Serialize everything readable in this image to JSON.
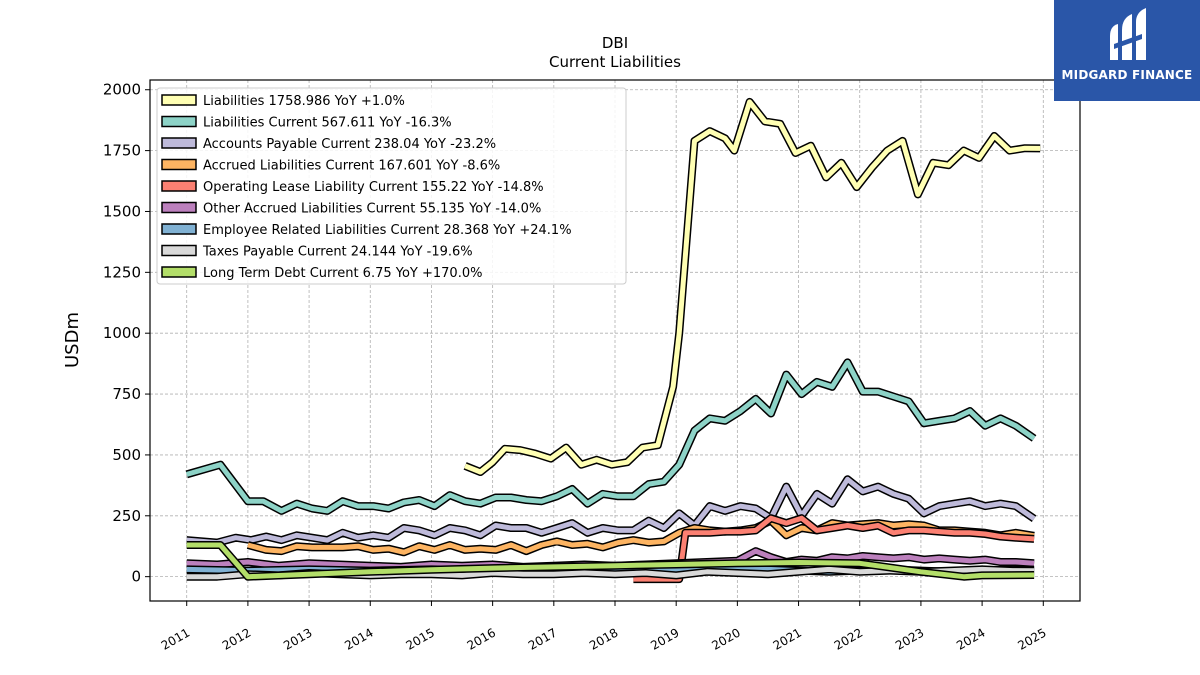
{
  "brand": {
    "name": "MIDGARD FINANCE",
    "color": "#2a56a8"
  },
  "chart_data": {
    "type": "line",
    "title": "DBI",
    "subtitle": "Current  Liabilities",
    "ylabel": "USDm",
    "xlabel": "",
    "ylim": [
      -100,
      2040
    ],
    "xlim": [
      2010.4,
      2025.6
    ],
    "yticks": [
      0,
      250,
      500,
      750,
      1000,
      1250,
      1500,
      1750,
      2000
    ],
    "xticks": [
      "2011",
      "2012",
      "2013",
      "2014",
      "2015",
      "2016",
      "2017",
      "2018",
      "2019",
      "2020",
      "2021",
      "2022",
      "2023",
      "2024",
      "2025"
    ],
    "grid": true,
    "legend_position": "top-left",
    "series": [
      {
        "name": "Liabilities  1758.986 YoY +1.0%",
        "color": "#ffffb3",
        "x": [
          2015.55,
          2015.8,
          2016.0,
          2016.2,
          2016.45,
          2016.7,
          2016.95,
          2017.2,
          2017.45,
          2017.7,
          2017.95,
          2018.2,
          2018.45,
          2018.7,
          2018.95,
          2019.05,
          2019.3,
          2019.55,
          2019.8,
          2019.95,
          2020.2,
          2020.45,
          2020.7,
          2020.95,
          2021.2,
          2021.45,
          2021.7,
          2021.95,
          2022.2,
          2022.45,
          2022.7,
          2022.95,
          2023.2,
          2023.45,
          2023.7,
          2023.95,
          2024.2,
          2024.45,
          2024.7,
          2024.95
        ],
        "y": [
          455,
          430,
          470,
          525,
          520,
          505,
          485,
          530,
          460,
          480,
          460,
          470,
          530,
          540,
          780,
          1000,
          1790,
          1830,
          1800,
          1750,
          1950,
          1870,
          1860,
          1740,
          1770,
          1640,
          1700,
          1600,
          1680,
          1750,
          1790,
          1570,
          1700,
          1690,
          1750,
          1720,
          1810,
          1750,
          1760,
          1759
        ]
      },
      {
        "name": "Liabilities Current  567.611 YoY -16.3%",
        "color": "#8dd3c7",
        "x": [
          2011.0,
          2011.55,
          2012.0,
          2012.25,
          2012.55,
          2012.8,
          2013.05,
          2013.3,
          2013.55,
          2013.8,
          2014.05,
          2014.3,
          2014.55,
          2014.8,
          2015.05,
          2015.3,
          2015.55,
          2015.8,
          2016.05,
          2016.3,
          2016.55,
          2016.8,
          2017.05,
          2017.3,
          2017.55,
          2017.8,
          2018.05,
          2018.3,
          2018.55,
          2018.8,
          2019.05,
          2019.3,
          2019.55,
          2019.8,
          2020.05,
          2020.3,
          2020.55,
          2020.8,
          2021.05,
          2021.3,
          2021.55,
          2021.8,
          2022.05,
          2022.3,
          2022.55,
          2022.8,
          2023.05,
          2023.3,
          2023.55,
          2023.8,
          2024.05,
          2024.3,
          2024.55,
          2024.85
        ],
        "y": [
          420,
          460,
          310,
          310,
          270,
          300,
          280,
          270,
          310,
          290,
          290,
          280,
          305,
          315,
          290,
          335,
          310,
          300,
          325,
          325,
          315,
          310,
          330,
          360,
          300,
          340,
          330,
          330,
          380,
          390,
          460,
          600,
          650,
          640,
          680,
          730,
          670,
          830,
          750,
          800,
          780,
          880,
          760,
          760,
          740,
          720,
          630,
          640,
          650,
          680,
          620,
          650,
          620,
          568
        ]
      },
      {
        "name": "Accounts Payable Current  238.04 YoY -23.2%",
        "color": "#bebada",
        "x": [
          2011.0,
          2011.5,
          2011.8,
          2012.05,
          2012.3,
          2012.55,
          2012.8,
          2013.05,
          2013.3,
          2013.55,
          2013.8,
          2014.05,
          2014.3,
          2014.55,
          2014.8,
          2015.05,
          2015.3,
          2015.55,
          2015.8,
          2016.05,
          2016.3,
          2016.55,
          2016.8,
          2017.05,
          2017.3,
          2017.55,
          2017.8,
          2018.05,
          2018.3,
          2018.55,
          2018.8,
          2019.05,
          2019.3,
          2019.55,
          2019.8,
          2020.05,
          2020.3,
          2020.55,
          2020.8,
          2021.05,
          2021.3,
          2021.55,
          2021.8,
          2022.05,
          2022.3,
          2022.55,
          2022.8,
          2023.05,
          2023.3,
          2023.55,
          2023.8,
          2024.05,
          2024.3,
          2024.55,
          2024.85
        ],
        "y": [
          150,
          140,
          160,
          150,
          165,
          150,
          170,
          160,
          150,
          180,
          160,
          170,
          160,
          200,
          190,
          170,
          200,
          190,
          170,
          210,
          200,
          200,
          180,
          200,
          220,
          180,
          200,
          190,
          190,
          230,
          200,
          260,
          210,
          290,
          270,
          290,
          280,
          240,
          370,
          250,
          340,
          300,
          400,
          350,
          370,
          340,
          320,
          260,
          290,
          300,
          310,
          290,
          300,
          290,
          238
        ]
      },
      {
        "name": "Accrued Liabilities Current  167.601 YoY -8.6%",
        "color": "#fdb462",
        "x": [
          2012.0,
          2012.3,
          2012.55,
          2012.8,
          2013.05,
          2013.3,
          2013.55,
          2013.8,
          2014.05,
          2014.3,
          2014.55,
          2014.8,
          2015.05,
          2015.3,
          2015.55,
          2015.8,
          2016.05,
          2016.3,
          2016.55,
          2016.8,
          2017.05,
          2017.3,
          2017.55,
          2017.8,
          2018.05,
          2018.3,
          2018.55,
          2018.8,
          2019.05,
          2019.3,
          2019.55,
          2019.8,
          2020.05,
          2020.3,
          2020.55,
          2020.8,
          2021.05,
          2021.3,
          2021.55,
          2021.8,
          2022.05,
          2022.3,
          2022.55,
          2022.8,
          2023.05,
          2023.3,
          2023.55,
          2023.8,
          2024.05,
          2024.3,
          2024.55,
          2024.85
        ],
        "y": [
          130,
          110,
          105,
          125,
          120,
          120,
          120,
          125,
          110,
          115,
          100,
          125,
          110,
          130,
          110,
          115,
          110,
          130,
          105,
          130,
          145,
          130,
          135,
          120,
          140,
          150,
          140,
          145,
          180,
          200,
          190,
          185,
          190,
          200,
          230,
          170,
          200,
          190,
          220,
          210,
          215,
          220,
          210,
          215,
          210,
          190,
          190,
          185,
          180,
          170,
          180,
          168
        ]
      },
      {
        "name": "Operating Lease Liability Current  155.22 YoY -14.8%",
        "color": "#fb8072",
        "x": [
          2018.3,
          2018.55,
          2018.8,
          2018.95,
          2019.05,
          2019.15,
          2019.55,
          2019.8,
          2020.05,
          2020.3,
          2020.55,
          2020.8,
          2021.05,
          2021.3,
          2021.55,
          2021.8,
          2022.05,
          2022.3,
          2022.55,
          2022.8,
          2023.05,
          2023.3,
          2023.55,
          2023.8,
          2024.05,
          2024.3,
          2024.55,
          2024.85
        ],
        "y": [
          -10,
          -10,
          -10,
          -10,
          -10,
          180,
          180,
          185,
          185,
          190,
          240,
          220,
          240,
          190,
          200,
          210,
          200,
          210,
          180,
          190,
          190,
          185,
          180,
          180,
          175,
          165,
          160,
          155
        ]
      },
      {
        "name": "Other Accrued Liabilities Current  55.135 YoY -14.0%",
        "color": "#bc80bd",
        "x": [
          2011.0,
          2011.5,
          2012.0,
          2012.5,
          2013.0,
          2013.5,
          2014.0,
          2014.5,
          2015.0,
          2015.5,
          2016.0,
          2016.5,
          2017.0,
          2017.5,
          2018.0,
          2018.5,
          2019.0,
          2019.5,
          2020.0,
          2020.3,
          2020.55,
          2020.8,
          2021.05,
          2021.3,
          2021.55,
          2021.8,
          2022.05,
          2022.3,
          2022.55,
          2022.8,
          2023.05,
          2023.3,
          2023.55,
          2023.8,
          2024.05,
          2024.3,
          2024.55,
          2024.85
        ],
        "y": [
          55,
          50,
          60,
          45,
          55,
          50,
          45,
          40,
          50,
          45,
          50,
          40,
          45,
          50,
          45,
          50,
          55,
          60,
          65,
          105,
          80,
          60,
          70,
          65,
          80,
          75,
          85,
          80,
          75,
          80,
          70,
          75,
          70,
          65,
          70,
          60,
          60,
          55
        ]
      },
      {
        "name": "Employee Related Liabilities Current  28.368 YoY +24.1%",
        "color": "#80b1d3",
        "x": [
          2011.0,
          2012.0,
          2013.0,
          2014.0,
          2015.0,
          2016.0,
          2017.0,
          2018.0,
          2019.0,
          2020.0,
          2021.0,
          2021.5,
          2022.0,
          2022.5,
          2023.0,
          2023.5,
          2024.0,
          2024.5,
          2024.85
        ],
        "y": [
          30,
          25,
          30,
          25,
          30,
          25,
          30,
          30,
          30,
          35,
          25,
          20,
          25,
          30,
          25,
          20,
          25,
          30,
          28
        ]
      },
      {
        "name": "Taxes Payable Current  24.144 YoY -19.6%",
        "color": "#d9d9d9",
        "x": [
          2011.0,
          2011.5,
          2012.0,
          2012.5,
          2013.0,
          2013.5,
          2014.0,
          2014.5,
          2015.0,
          2015.5,
          2016.0,
          2016.5,
          2017.0,
          2017.5,
          2018.0,
          2018.5,
          2019.0,
          2019.5,
          2020.0,
          2020.5,
          2021.0,
          2021.5,
          2022.0,
          2022.5,
          2023.0,
          2023.5,
          2024.0,
          2024.5,
          2024.85
        ],
        "y": [
          0,
          0,
          10,
          5,
          15,
          10,
          5,
          10,
          10,
          5,
          15,
          10,
          10,
          15,
          10,
          15,
          5,
          20,
          15,
          10,
          20,
          30,
          20,
          25,
          20,
          25,
          30,
          25,
          24
        ]
      },
      {
        "name": "Long Term Debt Current  6.75 YoY +170.0%",
        "color": "#b3de69",
        "x": [
          2011.0,
          2011.55,
          2012.0,
          2013.0,
          2014.0,
          2015.0,
          2016.0,
          2017.0,
          2018.0,
          2019.0,
          2020.0,
          2021.0,
          2022.0,
          2023.0,
          2023.7,
          2024.0,
          2024.85
        ],
        "y": [
          130,
          130,
          0,
          10,
          20,
          28,
          35,
          40,
          45,
          50,
          55,
          58,
          55,
          20,
          0,
          5,
          7
        ]
      }
    ]
  }
}
